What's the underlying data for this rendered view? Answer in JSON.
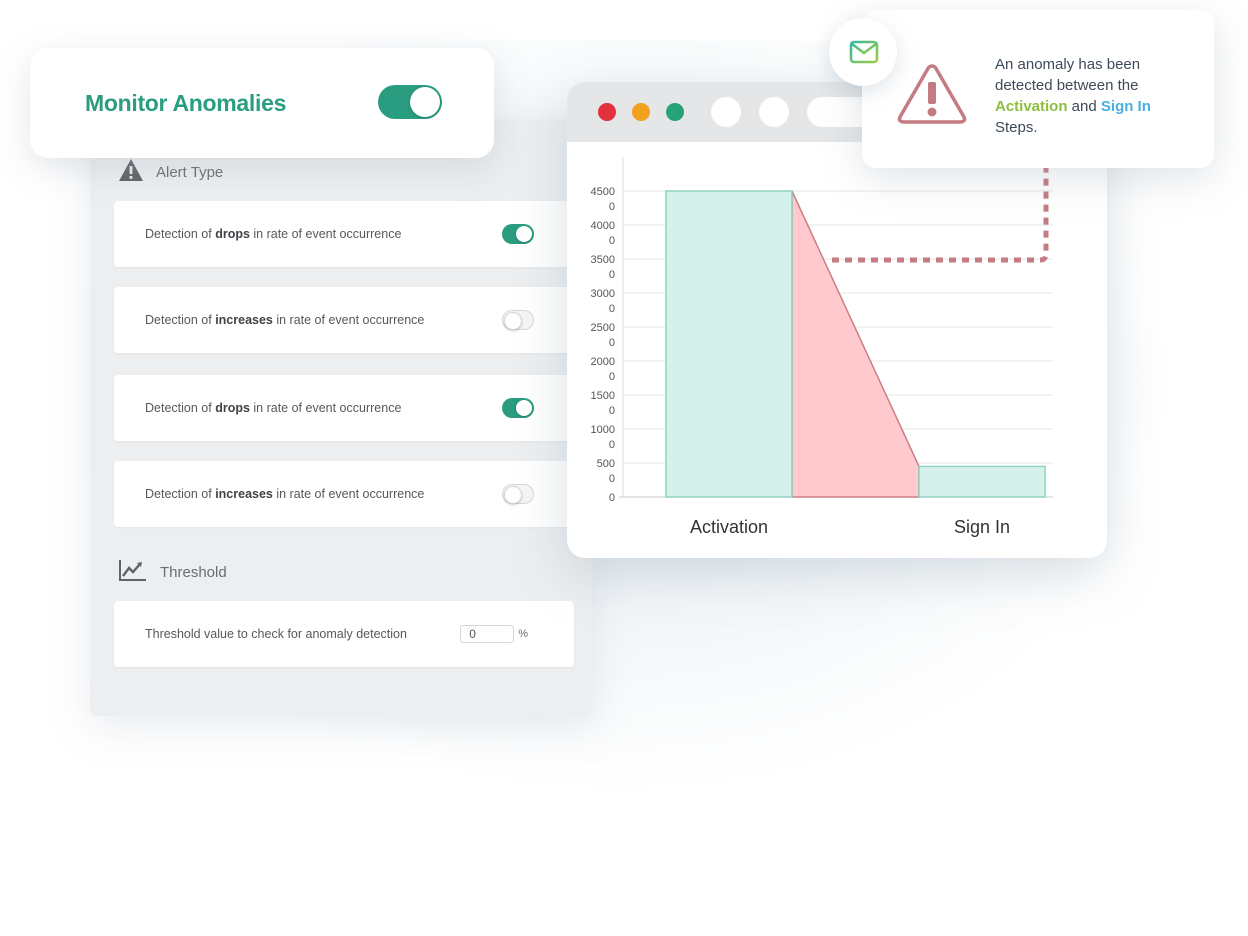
{
  "monitor": {
    "title": "Monitor Anomalies",
    "enabled": true
  },
  "settings": {
    "alert_section_title": "Alert Type",
    "alert_section_icon": "warning-triangle-icon",
    "rows": [
      {
        "prefix": "Detection of ",
        "keyword": "drops",
        "suffix": " in rate of event occurrence",
        "enabled": true
      },
      {
        "prefix": "Detection of ",
        "keyword": "increases",
        "suffix": " in rate of event occurrence",
        "enabled": false
      },
      {
        "prefix": "Detection of ",
        "keyword": "drops",
        "suffix": " in rate of event occurrence",
        "enabled": true
      },
      {
        "prefix": "Detection of ",
        "keyword": "increases",
        "suffix": " in rate of event occurrence",
        "enabled": false
      }
    ],
    "threshold_section_title": "Threshold",
    "threshold_section_icon": "trend-chart-icon",
    "threshold_label": "Threshold value to check for anomaly detection",
    "threshold_value": "0",
    "threshold_unit": "%"
  },
  "browser": {
    "dot_colors": [
      "#e0313c",
      "#f2a11f",
      "#27a37a"
    ]
  },
  "notification": {
    "icon": "alert-triangle-icon",
    "mail_icon": "mail-icon",
    "text_before": "An anomaly has been detected between the ",
    "step_a": "Activation",
    "middle": " and ",
    "step_b": "Sign In",
    "text_after": " Steps.",
    "accent_green": "#8cbf3f",
    "accent_blue": "#4aaee0"
  },
  "chart_data": {
    "type": "bar",
    "categories": [
      "Activation",
      "Sign In"
    ],
    "values": [
      4500,
      450
    ],
    "ylim": [
      0,
      5000
    ],
    "y_ticks": [
      {
        "value": 0,
        "line1": "0",
        "line2": ""
      },
      {
        "value": 500,
        "line1": "500",
        "line2": "0"
      },
      {
        "value": 1000,
        "line1": "1000",
        "line2": "0"
      },
      {
        "value": 1500,
        "line1": "1500",
        "line2": "0"
      },
      {
        "value": 2000,
        "line1": "2000",
        "line2": "0"
      },
      {
        "value": 2500,
        "line1": "2500",
        "line2": "0"
      },
      {
        "value": 3000,
        "line1": "3000",
        "line2": "0"
      },
      {
        "value": 3500,
        "line1": "3500",
        "line2": "0"
      },
      {
        "value": 4000,
        "line1": "4000",
        "line2": "0"
      },
      {
        "value": 4500,
        "line1": "4500",
        "line2": "0"
      }
    ],
    "grid": true,
    "bar_color": "#d4f1ea",
    "bar_border": "#8fd3c0",
    "drop_color": "#ffc9cd",
    "drop_border": "#cd7d85"
  }
}
